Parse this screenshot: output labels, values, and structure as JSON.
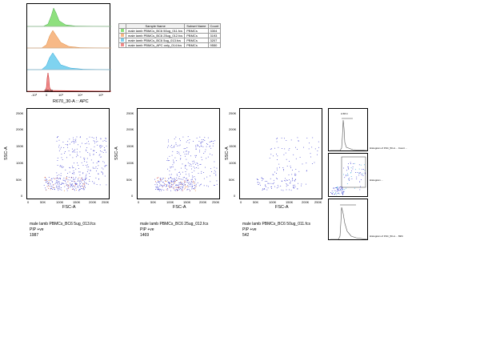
{
  "histogram": {
    "xaxis_label": "R670_30-A :: APC",
    "ticks": [
      "-10³",
      "0",
      "10³",
      "10⁴",
      "10⁵"
    ],
    "layers": [
      {
        "color": "#8ee07e",
        "stroke": "#4caf50"
      },
      {
        "color": "#f7b987",
        "stroke": "#e08a3c"
      },
      {
        "color": "#7fd3f0",
        "stroke": "#2aa3d6"
      },
      {
        "color": "#f08a8a",
        "stroke": "#c62828"
      }
    ]
  },
  "legend": {
    "headers": [
      "",
      "Sample Name",
      "Subset Name",
      "Count"
    ],
    "rows": [
      {
        "color": "#8ee07e",
        "sample": "male lamb PBMCs_BC6 50ug_011.fcs",
        "subset": "PBMCs",
        "count": "3304"
      },
      {
        "color": "#f7b987",
        "sample": "male lamb PBMCs_BC6 25ug_012.fcs",
        "subset": "PBMCs",
        "count": "3193"
      },
      {
        "color": "#7fd3f0",
        "sample": "male lamb PBMCs_BC6 5ug_013.fcs",
        "subset": "PBMCs",
        "count": "3207"
      },
      {
        "color": "#f08a8a",
        "sample": "male lamb PBMCs_APC only_014.fcs",
        "subset": "PBMCs",
        "count": "9550"
      }
    ]
  },
  "scatter_plots": [
    {
      "xlabel": "FSC-A",
      "ylabel": "SSC-A",
      "yticks": [
        "250K",
        "200K",
        "150K",
        "100K",
        "50K",
        "0"
      ],
      "xticks": [
        "0",
        "50K",
        "100K",
        "150K",
        "200K",
        "250K"
      ],
      "caption": [
        "male lamb PBMCs_BC6 5ug_013.fcs",
        "PIP +ve",
        "1987"
      ]
    },
    {
      "xlabel": "FSC-A",
      "ylabel": "SSC-A",
      "yticks": [
        "250K",
        "200K",
        "150K",
        "100K",
        "50K",
        "0"
      ],
      "xticks": [
        "0",
        "50K",
        "100K",
        "150K",
        "200K",
        "250K"
      ],
      "caption": [
        "male lamb PBMCs_BC6 25ug_012.fcs",
        "PIP +ve",
        "1469"
      ]
    },
    {
      "xlabel": "FSC-A",
      "ylabel": "SSC-A",
      "yticks": [
        "250K",
        "200K",
        "150K",
        "100K",
        "50K",
        "0"
      ],
      "xticks": [
        "0",
        "50K",
        "100K",
        "150K",
        "200K",
        "250K"
      ],
      "caption": [
        "male lamb PBMCs_BC6 50ug_011.fcs",
        "PIP +ve",
        "542"
      ]
    }
  ],
  "mini_panels": {
    "top_label": "Histogram of FSC_50-A ... Count ... ",
    "middle_label": "Histogram ... ",
    "bottom_label": "Histogram of FSC_50-A ... 69%"
  }
}
